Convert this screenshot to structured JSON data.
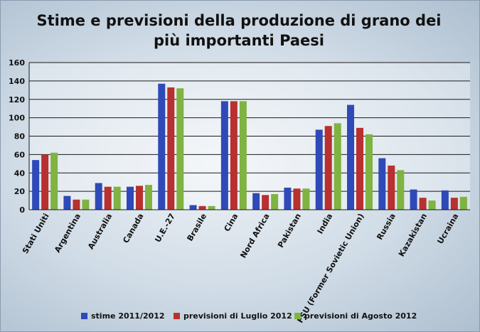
{
  "chart_data": {
    "type": "bar",
    "title": "Stime e previsioni della produzione di grano dei più importanti Paesi",
    "categories": [
      "Stati Uniti",
      "Argentina",
      "Australia",
      "Canada",
      "U.E.-27",
      "Brasile",
      "Cina",
      "Nord Africa",
      "Pakistan",
      "India",
      "FSU (Former Sovietic Union)",
      "Russia",
      "Kazakistan",
      "Ucraina"
    ],
    "series": [
      {
        "name": "stime 2011/2012",
        "color": "#2f49b8",
        "values": [
          54,
          15,
          29,
          25,
          137,
          5,
          118,
          18,
          24,
          87,
          114,
          56,
          22,
          21
        ]
      },
      {
        "name": "previsioni di Luglio 2012",
        "color": "#b8302f",
        "values": [
          60,
          11,
          25,
          26,
          133,
          4,
          118,
          16,
          23,
          91,
          89,
          48,
          13,
          13
        ]
      },
      {
        "name": "previsioni di Agosto 2012",
        "color": "#7fb342",
        "values": [
          62,
          11,
          25,
          27,
          132,
          4,
          118,
          17,
          23,
          94,
          82,
          43,
          10,
          14
        ]
      }
    ],
    "ylim": [
      0,
      160
    ],
    "yticks": [
      0,
      20,
      40,
      60,
      80,
      100,
      120,
      140,
      160
    ],
    "grid": true,
    "legend_position": "bottom"
  }
}
